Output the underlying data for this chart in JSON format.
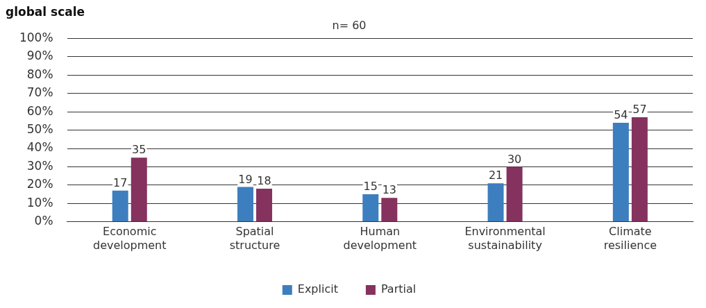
{
  "chart_data": {
    "type": "bar",
    "title": "global scale",
    "subtitle": "n= 60",
    "categories": [
      "Economic development",
      "Spatial structure",
      "Human development",
      "Environmental sustainability",
      "Climate resilience"
    ],
    "series": [
      {
        "name": "Explicit",
        "color": "#3d7ebf",
        "values": [
          17,
          19,
          15,
          21,
          54
        ]
      },
      {
        "name": "Partial",
        "color": "#85325f",
        "values": [
          35,
          18,
          13,
          30,
          57
        ]
      }
    ],
    "ylim": [
      0,
      100
    ],
    "yticks": [
      {
        "value": 0,
        "label": "0%"
      },
      {
        "value": 10,
        "label": "10%"
      },
      {
        "value": 20,
        "label": "20%"
      },
      {
        "value": 30,
        "label": "30%"
      },
      {
        "value": 40,
        "label": "40%"
      },
      {
        "value": 50,
        "label": "50%"
      },
      {
        "value": 60,
        "label": "60%"
      },
      {
        "value": 70,
        "label": "70%"
      },
      {
        "value": 80,
        "label": "80%"
      },
      {
        "value": 90,
        "label": "90%"
      },
      {
        "value": 100,
        "label": "100%"
      }
    ],
    "grid": "y",
    "data_labels": true,
    "legend": "bottom"
  }
}
